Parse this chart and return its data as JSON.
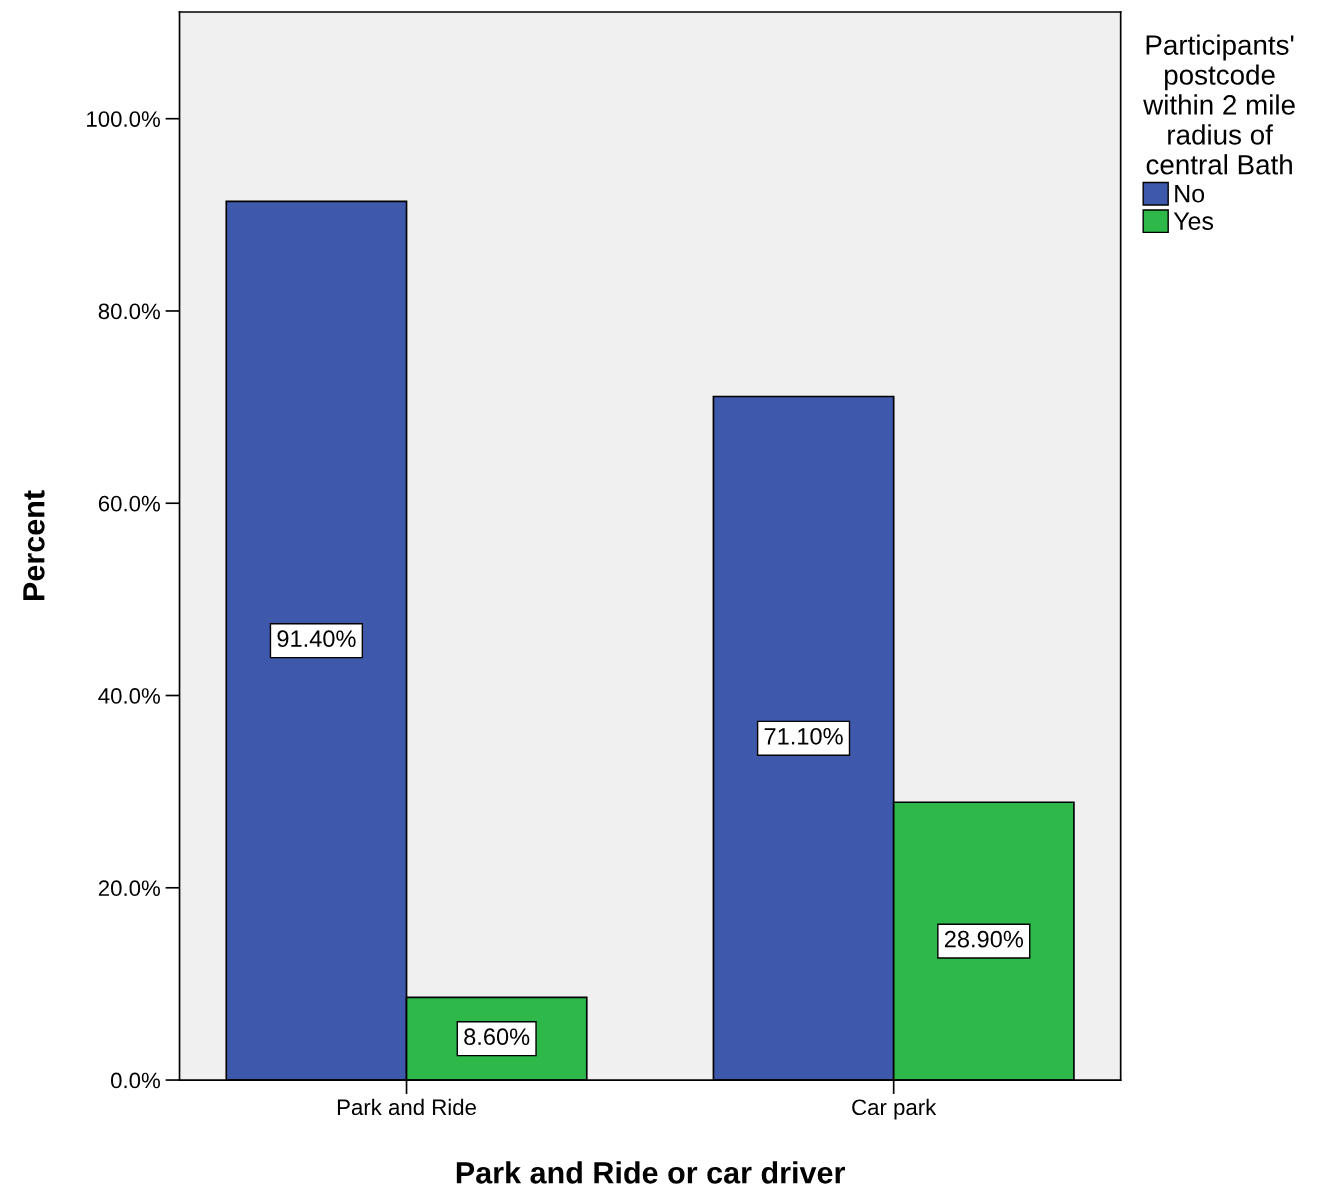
{
  "chart_data": {
    "type": "bar",
    "xlabel": "Park and Ride or car driver",
    "ylabel": "Percent",
    "legend_title": "Participants'\npostcode\nwithin 2 mile\nradius of\ncentral Bath",
    "categories": [
      "Park and Ride",
      "Car park"
    ],
    "series": [
      {
        "name": "No",
        "color": "#3e58ac",
        "values": [
          91.4,
          71.1
        ],
        "value_labels": [
          "91.40%",
          "71.10%"
        ]
      },
      {
        "name": "Yes",
        "color": "#2eb84a",
        "values": [
          8.6,
          28.9
        ],
        "value_labels": [
          "8.60%",
          "28.90%"
        ]
      }
    ],
    "ylim": [
      0,
      111.1
    ],
    "yticks": [
      {
        "value": 0,
        "label": "0.0%"
      },
      {
        "value": 20,
        "label": "20.0%"
      },
      {
        "value": 40,
        "label": "40.0%"
      },
      {
        "value": 60,
        "label": "60.0%"
      },
      {
        "value": 80,
        "label": "80.0%"
      },
      {
        "value": 100,
        "label": "100.0%"
      }
    ],
    "grid": false,
    "legend": "top right"
  }
}
